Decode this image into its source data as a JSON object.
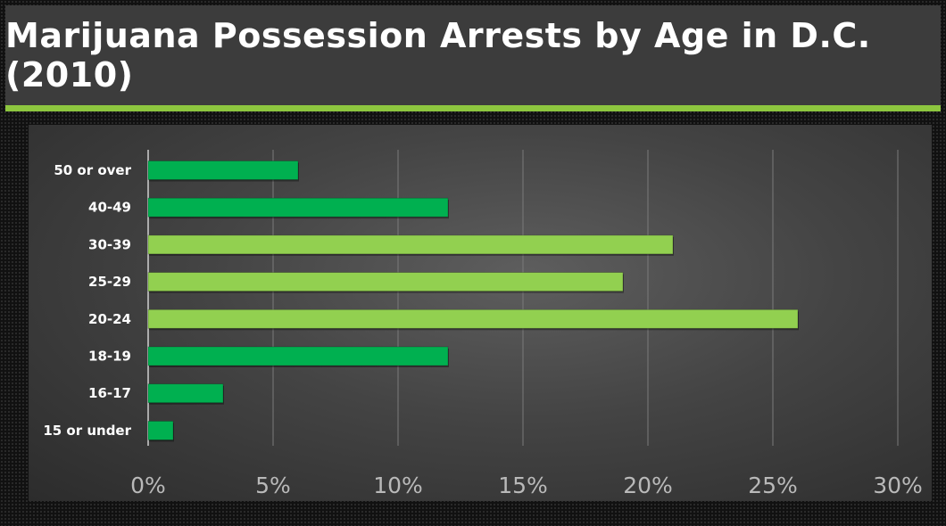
{
  "title": "Marijuana Possession Arrests by Age in D.C. (2010)",
  "colors": {
    "bar_dark": "#00b050",
    "bar_light": "#92d050",
    "accent": "#8dc63f",
    "header_bg": "#3c3c3c"
  },
  "chart_data": {
    "type": "bar",
    "orientation": "horizontal",
    "title": "",
    "xlabel": "",
    "ylabel": "",
    "xlim": [
      0,
      30
    ],
    "x_ticks": [
      "0%",
      "5%",
      "10%",
      "15%",
      "20%",
      "25%",
      "30%"
    ],
    "x_tick_values": [
      0,
      5,
      10,
      15,
      20,
      25,
      30
    ],
    "grid": true,
    "categories": [
      "50 or over",
      "40-49",
      "30-39",
      "25-29",
      "20-24",
      "18-19",
      "16-17",
      "15 or under"
    ],
    "values": [
      6,
      12,
      21,
      19,
      26,
      12,
      3,
      1
    ],
    "bar_colors": [
      "#00b050",
      "#00b050",
      "#92d050",
      "#92d050",
      "#92d050",
      "#00b050",
      "#00b050",
      "#00b050"
    ]
  }
}
